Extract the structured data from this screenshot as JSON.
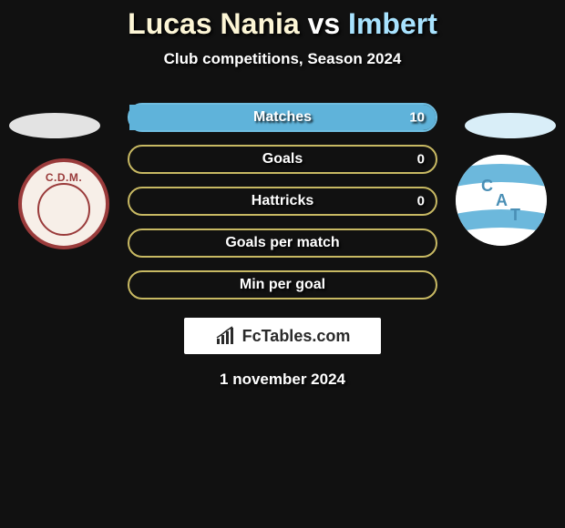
{
  "title": {
    "player1": "Lucas Nania",
    "vs": "vs",
    "player2": "Imbert"
  },
  "subtitle": "Club competitions, Season 2024",
  "colors": {
    "player1_accent": "#c8b963",
    "player1_fill": "#bba94f",
    "player2_accent": "#6fbde0",
    "player2_fill": "#5fb3da",
    "oval_left": "#e3e3e3",
    "oval_right": "#d9eef8",
    "background": "#111111"
  },
  "bars": [
    {
      "label": "Matches",
      "value_left": "",
      "value_right": "10",
      "left_pct": 0,
      "right_pct": 100,
      "left_color": "#bba94f",
      "right_color": "#5fb3da",
      "border_color": "#6fbde0"
    },
    {
      "label": "Goals",
      "value_left": "",
      "value_right": "0",
      "left_pct": 0,
      "right_pct": 0,
      "left_color": "#bba94f",
      "right_color": "#5fb3da",
      "border_color": "#c8b963"
    },
    {
      "label": "Hattricks",
      "value_left": "",
      "value_right": "0",
      "left_pct": 0,
      "right_pct": 0,
      "left_color": "#bba94f",
      "right_color": "#5fb3da",
      "border_color": "#c8b963"
    },
    {
      "label": "Goals per match",
      "value_left": "",
      "value_right": "",
      "left_pct": 0,
      "right_pct": 0,
      "left_color": "#bba94f",
      "right_color": "#5fb3da",
      "border_color": "#c8b963"
    },
    {
      "label": "Min per goal",
      "value_left": "",
      "value_right": "",
      "left_pct": 0,
      "right_pct": 0,
      "left_color": "#bba94f",
      "right_color": "#5fb3da",
      "border_color": "#c8b963"
    }
  ],
  "watermark": "FcTables.com",
  "date": "1 november 2024",
  "crest_left_text": "C.D.M."
}
